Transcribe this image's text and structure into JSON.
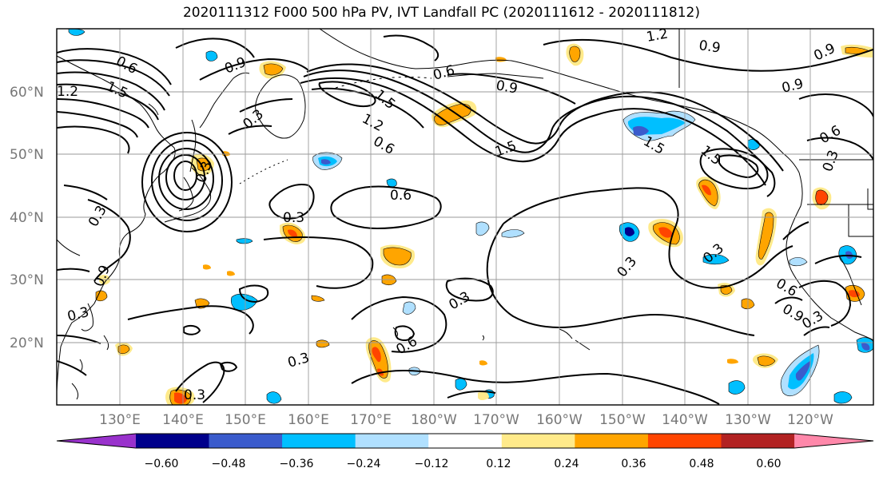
{
  "title": "2020111312 F000 500 hPa PV, IVT Landfall PC (2020111612 - 2020111812)",
  "lat_labels": [
    "60°N",
    "50°N",
    "40°N",
    "30°N",
    "20°N"
  ],
  "lon_labels": [
    "130°E",
    "140°E",
    "150°E",
    "160°E",
    "170°E",
    "180°W",
    "170°W",
    "160°W",
    "150°W",
    "140°W",
    "130°W",
    "120°W"
  ],
  "colorbar": {
    "ticks": [
      "−0.60",
      "−0.48",
      "−0.36",
      "−0.24",
      "−0.12",
      "0.12",
      "0.24",
      "0.36",
      "0.48",
      "0.60"
    ],
    "colors": [
      "#9932cc",
      "#00008b",
      "#3a5bcc",
      "#00bfff",
      "#b0e0ff",
      "#ffffff",
      "#ffea8a",
      "#ffa500",
      "#ff4500",
      "#b22222",
      "#ff88aa"
    ]
  },
  "contour_labels": [
    "0.6",
    "0.9",
    "1.2",
    "1.5",
    "0.6",
    "0.9",
    "0.3",
    "1.2",
    "1.5",
    "0.6",
    "0.6",
    "1.5",
    "0.9",
    "0.6",
    "0.3",
    "0.3",
    "0.3",
    "0.3",
    "0.3",
    "0.3",
    "0.3",
    "0.6",
    "0.9",
    "0.3",
    "0.3",
    "0.9",
    "1.2",
    "0.9",
    "1.5",
    "1.5",
    "0.3",
    "0.9",
    "0.3",
    "0.6"
  ]
}
